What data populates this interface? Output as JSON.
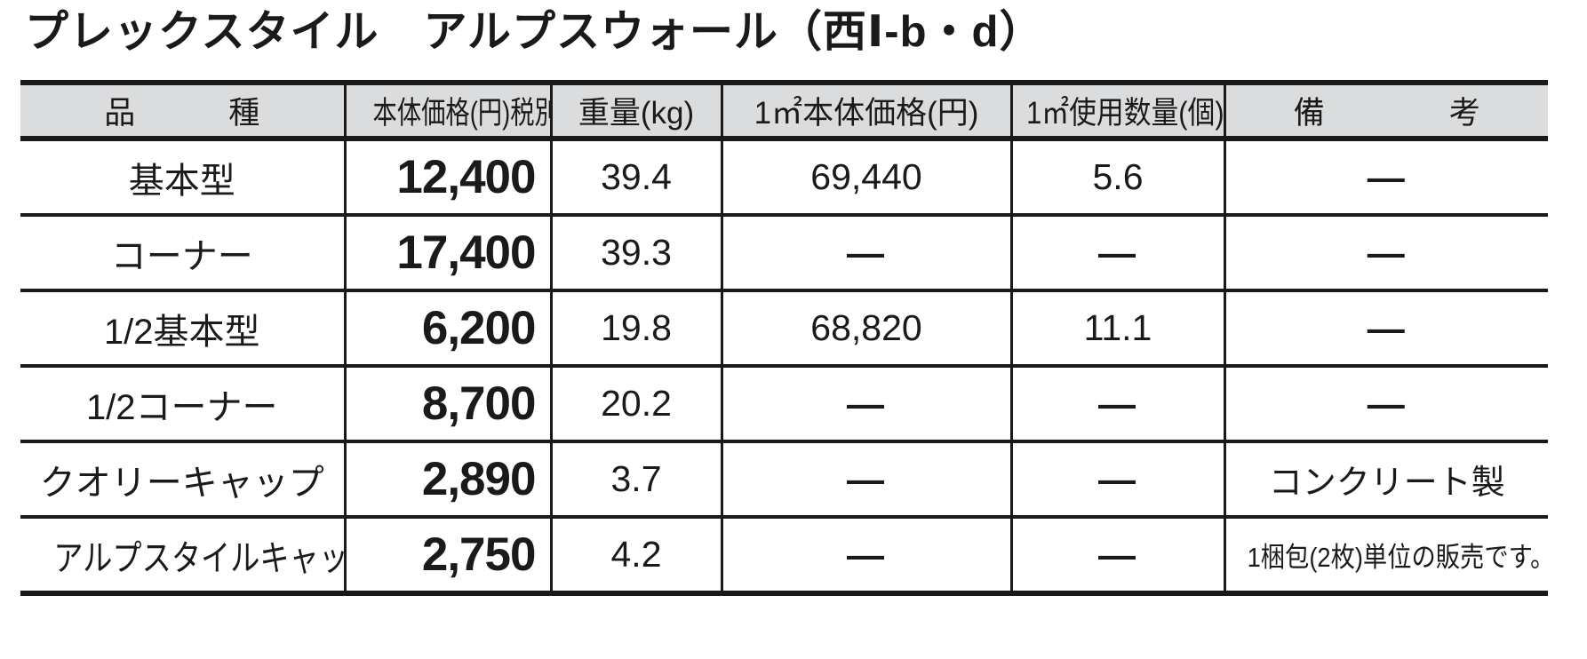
{
  "page": {
    "title": "プレックスタイル　アルプスウォール（西Ⅰ-b・d）"
  },
  "table": {
    "headers": {
      "item": "品　　　種",
      "price": "本体価格(円)税別",
      "weight": "重量(kg)",
      "price_per_m2": "1㎡本体価格(円)",
      "qty_per_m2": "1㎡使用数量(個)",
      "notes": "備　　　　考"
    },
    "rows": [
      {
        "item": "基本型",
        "price": "12,400",
        "weight": "39.4",
        "price_per_m2": "69,440",
        "qty_per_m2": "5.6",
        "note": "—"
      },
      {
        "item": "コーナー",
        "price": "17,400",
        "weight": "39.3",
        "price_per_m2": "—",
        "qty_per_m2": "—",
        "note": "—"
      },
      {
        "item": "1/2基本型",
        "price": "6,200",
        "weight": "19.8",
        "price_per_m2": "68,820",
        "qty_per_m2": "11.1",
        "note": "—"
      },
      {
        "item": "1/2コーナー",
        "price": "8,700",
        "weight": "20.2",
        "price_per_m2": "—",
        "qty_per_m2": "—",
        "note": "—"
      },
      {
        "item": "クオリーキャップ",
        "price": "2,890",
        "weight": "3.7",
        "price_per_m2": "—",
        "qty_per_m2": "—",
        "note": "コンクリート製"
      },
      {
        "item": "アルプスタイルキャップ",
        "price": "2,750",
        "weight": "4.2",
        "price_per_m2": "—",
        "qty_per_m2": "—",
        "note": "1梱包(2枚)単位の販売です。"
      }
    ]
  },
  "colors": {
    "header_bg": "#dbdcdd",
    "ink": "#1a1a1a",
    "page_bg": "#ffffff"
  }
}
